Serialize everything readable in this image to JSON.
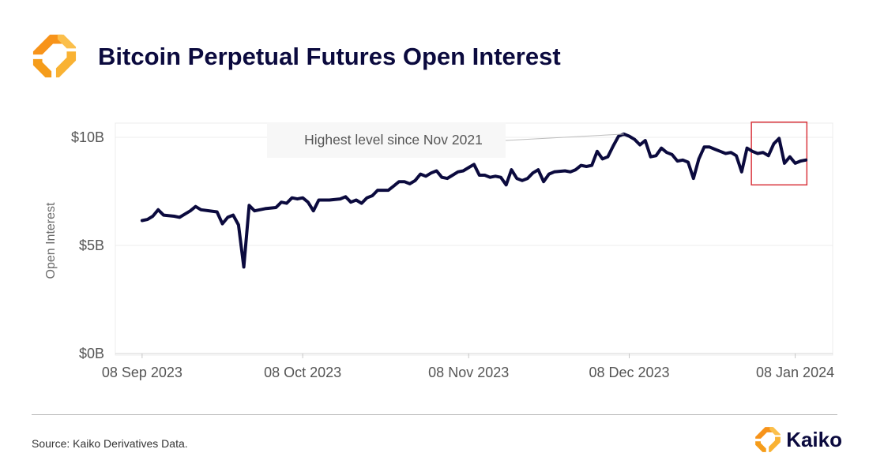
{
  "header": {
    "title": "Bitcoin Perpetual Futures Open Interest",
    "logo_icon": "kaiko-logo-icon"
  },
  "chart_data": {
    "type": "line",
    "ylabel": "Open Interest",
    "ylim": [
      0,
      11
    ],
    "xlim": [
      "2023-09-03",
      "2024-01-15"
    ],
    "y_ticks": [
      {
        "value": 0,
        "label": "$0B"
      },
      {
        "value": 5,
        "label": "$5B"
      },
      {
        "value": 10,
        "label": "$10B"
      }
    ],
    "x_ticks": [
      {
        "date": "2023-09-08",
        "label": "08 Sep 2023"
      },
      {
        "date": "2023-10-08",
        "label": "08 Oct 2023"
      },
      {
        "date": "2023-11-08",
        "label": "08 Nov 2023"
      },
      {
        "date": "2023-12-08",
        "label": "08 Dec 2023"
      },
      {
        "date": "2024-01-08",
        "label": "08 Jan 2024"
      }
    ],
    "grid": true,
    "series": [
      {
        "color": "#0b0a3e",
        "points": [
          [
            "2023-09-08",
            6.15
          ],
          [
            "2023-09-09",
            6.2
          ],
          [
            "2023-09-10",
            6.35
          ],
          [
            "2023-09-11",
            6.65
          ],
          [
            "2023-09-12",
            6.4
          ],
          [
            "2023-09-14",
            6.35
          ],
          [
            "2023-09-15",
            6.3
          ],
          [
            "2023-09-17",
            6.6
          ],
          [
            "2023-09-18",
            6.8
          ],
          [
            "2023-09-19",
            6.65
          ],
          [
            "2023-09-22",
            6.55
          ],
          [
            "2023-09-23",
            6.0
          ],
          [
            "2023-09-24",
            6.3
          ],
          [
            "2023-09-25",
            6.4
          ],
          [
            "2023-09-26",
            5.95
          ],
          [
            "2023-09-27",
            4.0
          ],
          [
            "2023-09-28",
            6.85
          ],
          [
            "2023-09-29",
            6.6
          ],
          [
            "2023-10-01",
            6.7
          ],
          [
            "2023-10-03",
            6.75
          ],
          [
            "2023-10-04",
            7.0
          ],
          [
            "2023-10-05",
            6.95
          ],
          [
            "2023-10-06",
            7.2
          ],
          [
            "2023-10-07",
            7.15
          ],
          [
            "2023-10-08",
            7.2
          ],
          [
            "2023-10-09",
            7.0
          ],
          [
            "2023-10-10",
            6.6
          ],
          [
            "2023-10-11",
            7.1
          ],
          [
            "2023-10-13",
            7.1
          ],
          [
            "2023-10-15",
            7.15
          ],
          [
            "2023-10-16",
            7.25
          ],
          [
            "2023-10-17",
            7.0
          ],
          [
            "2023-10-18",
            7.1
          ],
          [
            "2023-10-19",
            6.95
          ],
          [
            "2023-10-20",
            7.2
          ],
          [
            "2023-10-21",
            7.3
          ],
          [
            "2023-10-22",
            7.55
          ],
          [
            "2023-10-24",
            7.55
          ],
          [
            "2023-10-25",
            7.75
          ],
          [
            "2023-10-26",
            7.95
          ],
          [
            "2023-10-27",
            7.95
          ],
          [
            "2023-10-28",
            7.85
          ],
          [
            "2023-10-29",
            8.0
          ],
          [
            "2023-10-30",
            8.3
          ],
          [
            "2023-10-31",
            8.2
          ],
          [
            "2023-11-01",
            8.35
          ],
          [
            "2023-11-02",
            8.45
          ],
          [
            "2023-11-03",
            8.15
          ],
          [
            "2023-11-04",
            8.1
          ],
          [
            "2023-11-05",
            8.25
          ],
          [
            "2023-11-06",
            8.4
          ],
          [
            "2023-11-07",
            8.45
          ],
          [
            "2023-11-08",
            8.6
          ],
          [
            "2023-11-09",
            8.75
          ],
          [
            "2023-11-10",
            8.25
          ],
          [
            "2023-11-11",
            8.25
          ],
          [
            "2023-11-12",
            8.15
          ],
          [
            "2023-11-13",
            8.2
          ],
          [
            "2023-11-14",
            8.15
          ],
          [
            "2023-11-15",
            7.8
          ],
          [
            "2023-11-16",
            8.5
          ],
          [
            "2023-11-17",
            8.1
          ],
          [
            "2023-11-18",
            8.0
          ],
          [
            "2023-11-19",
            8.1
          ],
          [
            "2023-11-20",
            8.35
          ],
          [
            "2023-11-21",
            8.5
          ],
          [
            "2023-11-22",
            7.95
          ],
          [
            "2023-11-23",
            8.3
          ],
          [
            "2023-11-24",
            8.4
          ],
          [
            "2023-11-26",
            8.45
          ],
          [
            "2023-11-27",
            8.4
          ],
          [
            "2023-11-28",
            8.5
          ],
          [
            "2023-11-29",
            8.7
          ],
          [
            "2023-11-30",
            8.65
          ],
          [
            "2023-12-01",
            8.7
          ],
          [
            "2023-12-02",
            9.35
          ],
          [
            "2023-12-03",
            9.0
          ],
          [
            "2023-12-04",
            9.1
          ],
          [
            "2023-12-05",
            9.6
          ],
          [
            "2023-12-06",
            10.05
          ],
          [
            "2023-12-07",
            10.15
          ],
          [
            "2023-12-08",
            10.05
          ],
          [
            "2023-12-09",
            9.9
          ],
          [
            "2023-12-10",
            9.65
          ],
          [
            "2023-12-11",
            9.85
          ],
          [
            "2023-12-12",
            9.1
          ],
          [
            "2023-12-13",
            9.15
          ],
          [
            "2023-12-14",
            9.5
          ],
          [
            "2023-12-15",
            9.3
          ],
          [
            "2023-12-16",
            9.2
          ],
          [
            "2023-12-17",
            8.9
          ],
          [
            "2023-12-18",
            8.95
          ],
          [
            "2023-12-19",
            8.85
          ],
          [
            "2023-12-20",
            8.1
          ],
          [
            "2023-12-21",
            9.0
          ],
          [
            "2023-12-22",
            9.55
          ],
          [
            "2023-12-23",
            9.55
          ],
          [
            "2023-12-24",
            9.45
          ],
          [
            "2023-12-25",
            9.35
          ],
          [
            "2023-12-26",
            9.25
          ],
          [
            "2023-12-27",
            9.3
          ],
          [
            "2023-12-28",
            9.15
          ],
          [
            "2023-12-29",
            8.4
          ],
          [
            "2023-12-30",
            9.5
          ],
          [
            "2023-12-31",
            9.35
          ],
          [
            "2024-01-01",
            9.25
          ],
          [
            "2024-01-02",
            9.3
          ],
          [
            "2024-01-03",
            9.15
          ],
          [
            "2024-01-04",
            9.7
          ],
          [
            "2024-01-05",
            9.95
          ],
          [
            "2024-01-06",
            8.8
          ],
          [
            "2024-01-07",
            9.1
          ],
          [
            "2024-01-08",
            8.8
          ],
          [
            "2024-01-09",
            8.9
          ],
          [
            "2024-01-10",
            8.95
          ]
        ]
      }
    ],
    "annotations": [
      {
        "text": "Highest level since Nov 2021",
        "target": [
          "2023-12-07",
          10.15
        ]
      }
    ],
    "highlight_range": {
      "x": [
        "2024-01-01",
        "2024-01-09"
      ],
      "y": [
        7.8,
        10.7
      ],
      "color": "#d9363e"
    }
  },
  "footer": {
    "source": "Source: Kaiko Derivatives Data.",
    "brand_name": "Kaiko",
    "brand_icon": "kaiko-brand-icon"
  }
}
